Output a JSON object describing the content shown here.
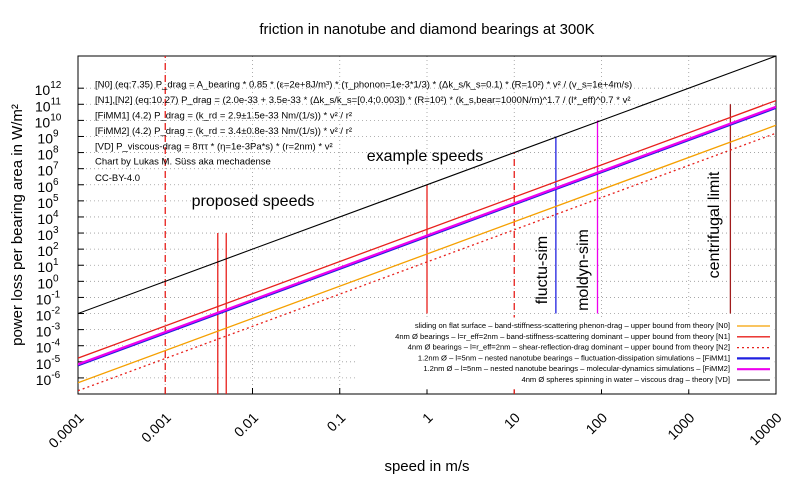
{
  "chart_data": {
    "type": "line",
    "title": "friction in nanotube and diamond bearings at 300K",
    "xlabel": "speed in m/s",
    "ylabel": "power loss per bearing area in W/m²",
    "log_x": true,
    "log_y": true,
    "grid": true,
    "legend": "lower right",
    "xlim": [
      0.0001,
      10000
    ],
    "xticks": [
      0.0001,
      0.001,
      0.01,
      0.1,
      1,
      10,
      100,
      1000,
      10000
    ],
    "ylim": [
      1e-07,
      100000000000000.0
    ],
    "yticks": [
      {
        "value": 1e-06,
        "label": "10",
        "exp": "-6"
      },
      {
        "value": 1e-05,
        "label": "10",
        "exp": "-5"
      },
      {
        "value": 0.0001,
        "label": "10",
        "exp": "-4"
      },
      {
        "value": 0.001,
        "label": "10",
        "exp": "-3"
      },
      {
        "value": 0.01,
        "label": "10",
        "exp": "-2"
      },
      {
        "value": 0.1,
        "label": "10",
        "exp": "-1"
      },
      {
        "value": 1,
        "label": "10",
        "exp": "0"
      },
      {
        "value": 10,
        "label": "10",
        "exp": "1"
      },
      {
        "value": 100,
        "label": "10",
        "exp": "2"
      },
      {
        "value": 1000,
        "label": "10",
        "exp": "3"
      },
      {
        "value": 10000,
        "label": "10",
        "exp": "4"
      },
      {
        "value": 100000,
        "label": "10",
        "exp": "5"
      },
      {
        "value": 1000000,
        "label": "10",
        "exp": "6"
      },
      {
        "value": 10000000,
        "label": "10",
        "exp": "7"
      },
      {
        "value": 100000000,
        "label": "10",
        "exp": "8"
      },
      {
        "value": 1000000000,
        "label": "10",
        "exp": "9"
      },
      {
        "value": 10000000000,
        "label": "10",
        "exp": "10"
      },
      {
        "value": 100000000000,
        "label": "10",
        "exp": "11"
      },
      {
        "value": 1000000000000,
        "label": "10",
        "exp": "12"
      }
    ],
    "x": [
      0.0001,
      10000
    ],
    "series": [
      {
        "name": "sliding on flat surface – band-stiffness-scattering phenon-drag – upper bound from theory [N0]",
        "color": "#f5a000",
        "width": 1.3,
        "values": [
          5e-07,
          5000000000.0
        ]
      },
      {
        "name": "4nm Ø bearings – l=r_eff=2nm – band-stiffness-scattering dominant – upper bound from theory [N1]",
        "color": "#e8201c",
        "width": 1.3,
        "values": [
          1.7e-05,
          170000000000.0
        ]
      },
      {
        "name": "4nm Ø bearings – l=r_eff=2nm – shear-reflection-drag dominant – upper bound from theory [N2]",
        "color": "#e8201c",
        "width": 1.3,
        "dash": true,
        "values": [
          1.6e-07,
          1600000000.0
        ]
      },
      {
        "name": "1.2nm Ø – l=5nm – nested nanotube bearings – fluctuation-dissipation simulations – [FiMM1]",
        "color": "#2020e0",
        "width": 2.2,
        "values": [
          6e-06,
          60000000000.0
        ]
      },
      {
        "name": "1.2nm Ø – l=5nm – nested nanotube bearings – molecular-dynamics simulations – [FiMM2]",
        "color": "#ee00ee",
        "width": 2.2,
        "values": [
          7e-06,
          70000000000.0
        ]
      },
      {
        "name": "4nm Ø spheres spinning in water – viscous drag – theory [VD]",
        "color": "#000000",
        "width": 1.1,
        "values": [
          0.01,
          100000000000000.0
        ]
      }
    ],
    "markers": [
      {
        "x": 0.001,
        "y": [
          1e-07,
          100000000000000.0
        ],
        "color": "#e8201c",
        "dash": true
      },
      {
        "x": 0.004,
        "y": [
          1e-07,
          1000
        ],
        "color": "#e8201c"
      },
      {
        "x": 0.005,
        "y": [
          1e-07,
          1000
        ],
        "color": "#e8201c"
      },
      {
        "x": 10,
        "y": [
          1e-07,
          100000000.0
        ],
        "color": "#e8201c",
        "dash": true
      },
      {
        "x": 1,
        "y": [
          0.01,
          1000000
        ],
        "color": "#e8201c"
      },
      {
        "x": 30,
        "y": [
          0.01,
          1000000000
        ],
        "color": "#2020e0"
      },
      {
        "x": 90,
        "y": [
          0.01,
          10000000000
        ],
        "color": "#ee00ee"
      },
      {
        "x": 3000,
        "y": [
          0.01,
          100000000000
        ],
        "color": "#a01c1c"
      }
    ],
    "annotations": [
      {
        "text": "proposed speeds",
        "color": "#e8201c"
      },
      {
        "text": "example speeds",
        "color": "#e8201c"
      },
      {
        "text": "fluctu-sim",
        "color": "#2020e0"
      },
      {
        "text": "moldyn-sim",
        "color": "#ee00ee"
      },
      {
        "text": "centrifugal limit",
        "color": "#a01c1c"
      }
    ],
    "notes": [
      {
        "text": "[N0] (eq:7.35) P_drag = A_bearing * 0.85 * (ε=2e+8J/m³) * (τ_phonon=1e-3*1/3) * (Δk_s/k_s=0.1) * (R=10²) * v² / (v_s=1e+4m/s)",
        "color": "#f5a000"
      },
      {
        "text": "[N1],[N2] (eq:10.27) P_drag = (2.0e-33 + 3.5e-33 * (Δk_s/k_s=[0.4;0.003]) * (R=10²) * (k_s,bear=1000N/m)^1.7 / (l*_eff)^0.7 * v²",
        "color": "#e8201c"
      },
      {
        "text": "[FiMM1] (4.2) P_drag = (k_rd = 2.9±1.5e-33 Nm/(1/s)) * v² / r²",
        "color": "#2020e0"
      },
      {
        "text": "[FiMM2] (4.2) P_drag = (k_rd = 3.4±0.8e-33 Nm/(1/s)) * v² / r²",
        "color": "#ee00ee"
      },
      {
        "text": "[VD] P_viscous-drag = 8πτ * (η=1e-3Pa*s) * (r=2nm) * v²",
        "color": "#000000"
      },
      {
        "text": "Chart by Lukas M. Süss aka mechadense",
        "color": "#20b020"
      },
      {
        "text": "CC-BY-4.0",
        "color": "#20b020"
      }
    ]
  }
}
